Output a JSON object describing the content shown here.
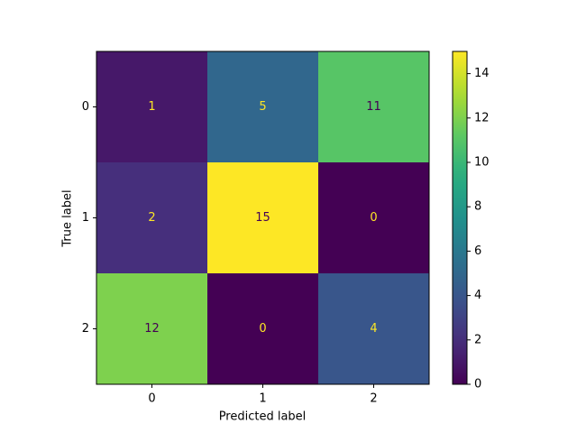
{
  "chart_data": {
    "type": "heatmap",
    "xlabel": "Predicted label",
    "ylabel": "True label",
    "xcategories": [
      "0",
      "1",
      "2"
    ],
    "ycategories": [
      "0",
      "1",
      "2"
    ],
    "values": [
      [
        1,
        5,
        11
      ],
      [
        2,
        15,
        0
      ],
      [
        12,
        0,
        4
      ]
    ],
    "colormap": "viridis",
    "clim": [
      0,
      15
    ],
    "cticks": [
      0,
      2,
      4,
      6,
      8,
      10,
      12,
      14
    ]
  }
}
